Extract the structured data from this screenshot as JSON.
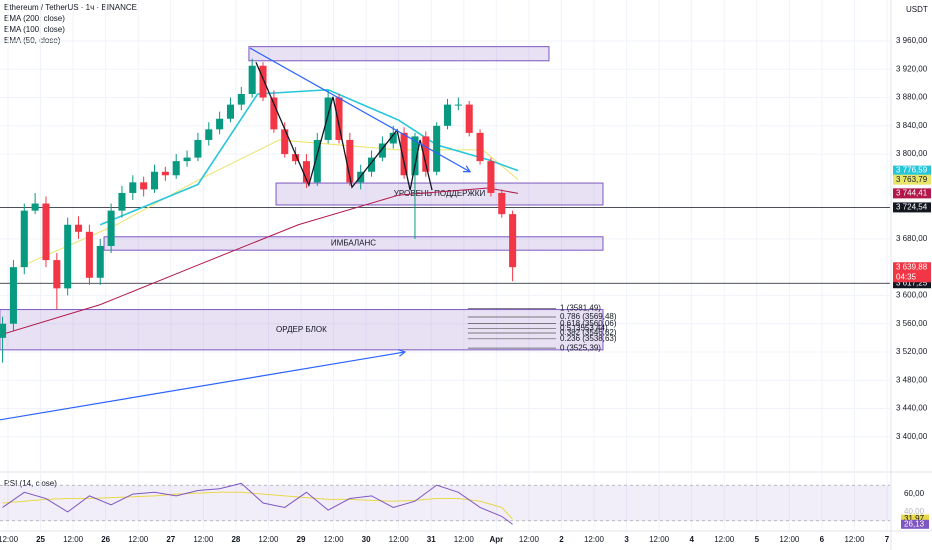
{
  "chart_data": {
    "type": "candlestick",
    "title": "Ethereum / TetherUS · 1ч · BINANCE",
    "indicators": [
      "EMA (200, close)",
      "EMA (100, close)",
      "EMA (50, close)"
    ],
    "currency": "USDT",
    "up_color": "#089981",
    "down_color": "#f23645",
    "x": [
      -2,
      2,
      6,
      10,
      14,
      18,
      22,
      26,
      30,
      34,
      38,
      42,
      46,
      50,
      54,
      58,
      62,
      66,
      70,
      74,
      78,
      82,
      86,
      90,
      94,
      98,
      102,
      106,
      110,
      114,
      118,
      122,
      126,
      130,
      134,
      138,
      142,
      146,
      150,
      154,
      158,
      162,
      166,
      170,
      174,
      178,
      182,
      186
    ],
    "open": [
      3540,
      3560,
      3640,
      3720,
      3730,
      3650,
      3610,
      3700,
      3690,
      3625,
      3670,
      3720,
      3745,
      3760,
      3750,
      3775,
      3770,
      3790,
      3795,
      3820,
      3835,
      3850,
      3870,
      3885,
      3925,
      3880,
      3835,
      3800,
      3790,
      3760,
      3820,
      3880,
      3820,
      3760,
      3775,
      3795,
      3815,
      3830,
      3770,
      3825,
      3775,
      3840,
      3870,
      3870,
      3830,
      3790,
      3745,
      3715
    ],
    "high": [
      3570,
      3650,
      3730,
      3745,
      3740,
      3660,
      3710,
      3712,
      3700,
      3680,
      3730,
      3755,
      3770,
      3768,
      3785,
      3782,
      3800,
      3805,
      3830,
      3845,
      3860,
      3880,
      3895,
      3935,
      3930,
      3890,
      3845,
      3810,
      3800,
      3830,
      3890,
      3885,
      3830,
      3785,
      3805,
      3825,
      3840,
      3838,
      3830,
      3832,
      3845,
      3878,
      3880,
      3875,
      3835,
      3795,
      3750,
      3720
    ],
    "low": [
      3505,
      3550,
      3630,
      3715,
      3640,
      3580,
      3600,
      3680,
      3615,
      3615,
      3660,
      3710,
      3735,
      3740,
      3745,
      3762,
      3765,
      3782,
      3790,
      3812,
      3828,
      3845,
      3862,
      3880,
      3875,
      3830,
      3795,
      3785,
      3752,
      3755,
      3815,
      3815,
      3755,
      3750,
      3768,
      3790,
      3808,
      3765,
      3680,
      3768,
      3770,
      3835,
      3862,
      3825,
      3785,
      3740,
      3710,
      3620
    ],
    "close": [
      3560,
      3640,
      3720,
      3730,
      3650,
      3610,
      3700,
      3690,
      3625,
      3670,
      3720,
      3745,
      3760,
      3750,
      3775,
      3770,
      3790,
      3795,
      3820,
      3835,
      3850,
      3870,
      3885,
      3925,
      3880,
      3835,
      3800,
      3790,
      3760,
      3820,
      3880,
      3820,
      3760,
      3775,
      3795,
      3815,
      3830,
      3770,
      3825,
      3775,
      3840,
      3870,
      3870,
      3830,
      3790,
      3745,
      3715,
      3640
    ],
    "xlim": [
      -2.95,
      325.1
    ],
    "xticks": [
      {
        "value": 0,
        "label": "12:00"
      },
      {
        "value": 12,
        "label": "25"
      },
      {
        "value": 24,
        "label": "12:00"
      },
      {
        "value": 36,
        "label": "26"
      },
      {
        "value": 48,
        "label": "12:00"
      },
      {
        "value": 60,
        "label": "27"
      },
      {
        "value": 72,
        "label": "12:00"
      },
      {
        "value": 84,
        "label": "28"
      },
      {
        "value": 96,
        "label": "12:00"
      },
      {
        "value": 108,
        "label": "29"
      },
      {
        "value": 120,
        "label": "12:00"
      },
      {
        "value": 132,
        "label": "30"
      },
      {
        "value": 144,
        "label": "12:00"
      },
      {
        "value": 156,
        "label": "31"
      },
      {
        "value": 168,
        "label": "12:00"
      },
      {
        "value": 180,
        "label": "Apr"
      },
      {
        "value": 192,
        "label": "12:00"
      },
      {
        "value": 204,
        "label": "2"
      },
      {
        "value": 216,
        "label": "12:00"
      },
      {
        "value": 228,
        "label": "3"
      },
      {
        "value": 240,
        "label": "12:00"
      },
      {
        "value": 252,
        "label": "4"
      },
      {
        "value": 264,
        "label": "12:00"
      },
      {
        "value": 276,
        "label": "5"
      },
      {
        "value": 288,
        "label": "12:00"
      },
      {
        "value": 300,
        "label": "6"
      },
      {
        "value": 312,
        "label": "12:00"
      },
      {
        "value": 324,
        "label": "7"
      }
    ],
    "ylim": [
      3353,
      4018
    ],
    "yticks": [
      {
        "value": 3960,
        "label": "3 960,00"
      },
      {
        "value": 3920,
        "label": "3 920,00"
      },
      {
        "value": 3880,
        "label": "3 880,00"
      },
      {
        "value": 3840,
        "label": "3 840,00"
      },
      {
        "value": 3800,
        "label": "3 800,00"
      },
      {
        "value": 3680,
        "label": "3 680,00"
      },
      {
        "value": 3600,
        "label": "3 600,00"
      },
      {
        "value": 3560,
        "label": "3 560,00"
      },
      {
        "value": 3520,
        "label": "3 520,00"
      },
      {
        "value": 3480,
        "label": "3 480,00"
      },
      {
        "value": 3440,
        "label": "3 440,00"
      },
      {
        "value": 3400,
        "label": "3 400,00"
      }
    ],
    "grid": true,
    "ema": [
      {
        "name": "EMA (200, close)",
        "color": "#b2184a",
        "x": [
          -3,
          34,
          70,
          107,
          144,
          177,
          188
        ],
        "values": [
          3544,
          3587,
          3643,
          3700,
          3742,
          3752,
          3744.41
        ]
      },
      {
        "name": "EMA (100, close)",
        "color": "#e9e56a",
        "x": [
          4,
          40,
          70,
          100,
          144,
          175,
          188
        ],
        "values": [
          3640,
          3700,
          3763,
          3820,
          3806,
          3806,
          3763.79
        ]
      },
      {
        "name": "EMA (50, close)",
        "color": "#26c6da",
        "x": [
          34,
          70,
          92,
          118,
          144,
          158,
          177,
          188
        ],
        "values": [
          3700,
          3757,
          3885,
          3891,
          3848,
          3813,
          3792,
          3776.59
        ]
      }
    ],
    "price_labels": [
      {
        "value": 3776.59,
        "label": "3 776,59",
        "color": "#26c6da"
      },
      {
        "value": 3763.79,
        "label": "3 763,79",
        "color": "#e9e56a"
      },
      {
        "value": 3744.41,
        "label": "3 744,41",
        "color": "#b2184a"
      },
      {
        "value": 3639.88,
        "label": "3 639,88",
        "color": "#f23645",
        "countdown": "04:35"
      }
    ],
    "hlines": [
      {
        "value": 3724.54,
        "label": "3 724,54"
      },
      {
        "value": 3617.25,
        "label": "3 617,25"
      }
    ],
    "zones": [
      {
        "x": [
          88.8,
          199.4
        ],
        "y": [
          3932,
          3952
        ]
      },
      {
        "x": [
          98.8,
          219.3
        ],
        "y": [
          3728,
          3759
        ],
        "text": "УРОВЕНЬ ПОДДЕРЖКИ"
      },
      {
        "x": [
          35.4,
          219.3
        ],
        "y": [
          3664,
          3683
        ],
        "text": "ИМБАЛАНС"
      },
      {
        "x": [
          -3,
          219.3
        ],
        "y": [
          3523,
          3580
        ],
        "text": "ОРДЕР БЛОК"
      }
    ],
    "fib": {
      "x": [
        169.5,
        202
      ],
      "levels": [
        {
          "value": 3581.49,
          "label": "1 (3581,49)"
        },
        {
          "value": 3569.48,
          "label": "0.786 (3569,48)"
        },
        {
          "value": 3560.06,
          "label": "0.618 (3560,06)"
        },
        {
          "value": 3553.44,
          "label": "0.5 (3553,44)"
        },
        {
          "value": 3546.82,
          "label": "0.382 (3546,82)"
        },
        {
          "value": 3538.63,
          "label": "0.236 (3538,63)"
        },
        {
          "value": 3525.39,
          "label": "0 (3525,39)"
        }
      ]
    },
    "trendlines": [
      {
        "x": [
          89.2,
          170.3
        ],
        "y": [
          3950,
          3775
        ]
      },
      {
        "x": [
          -3,
          146.3
        ],
        "y": [
          3424,
          3520
        ]
      }
    ],
    "zigzag": {
      "x": [
        91.4,
        110.9,
        119.8,
        126.8,
        143.4,
        148.2,
        151.9,
        156.3
      ],
      "y": [
        3930,
        3756,
        3881,
        3753,
        3834,
        3749,
        3820,
        3749
      ]
    },
    "rsi": {
      "name": "RSI (14, close)",
      "ylim": [
        22,
        78
      ],
      "band": [
        30,
        70
      ],
      "yticks": [
        {
          "value": 60,
          "label": "60,00"
        },
        {
          "value": 40,
          "label": "40,00"
        }
      ],
      "x": [
        -2,
        6,
        14,
        22,
        30,
        38,
        46,
        54,
        62,
        70,
        78,
        86,
        94,
        102,
        110,
        118,
        126,
        134,
        142,
        150,
        158,
        166,
        174,
        182,
        186
      ],
      "values": [
        45,
        62,
        55,
        40,
        58,
        48,
        60,
        62,
        58,
        64,
        66,
        72,
        50,
        45,
        62,
        42,
        55,
        58,
        45,
        52,
        70,
        62,
        45,
        35,
        26.13
      ],
      "ma_values": [
        50,
        52,
        54,
        55,
        55,
        56,
        57,
        58,
        60,
        61,
        62,
        62,
        60,
        58,
        56,
        54,
        54,
        53,
        52,
        53,
        55,
        55,
        52,
        45,
        31.97
      ],
      "last_labels": [
        {
          "value": 31.97,
          "label": "31,97",
          "color": "#e9d84a"
        },
        {
          "value": 26.13,
          "label": "26,13",
          "color": "#7e57c2"
        }
      ]
    }
  }
}
